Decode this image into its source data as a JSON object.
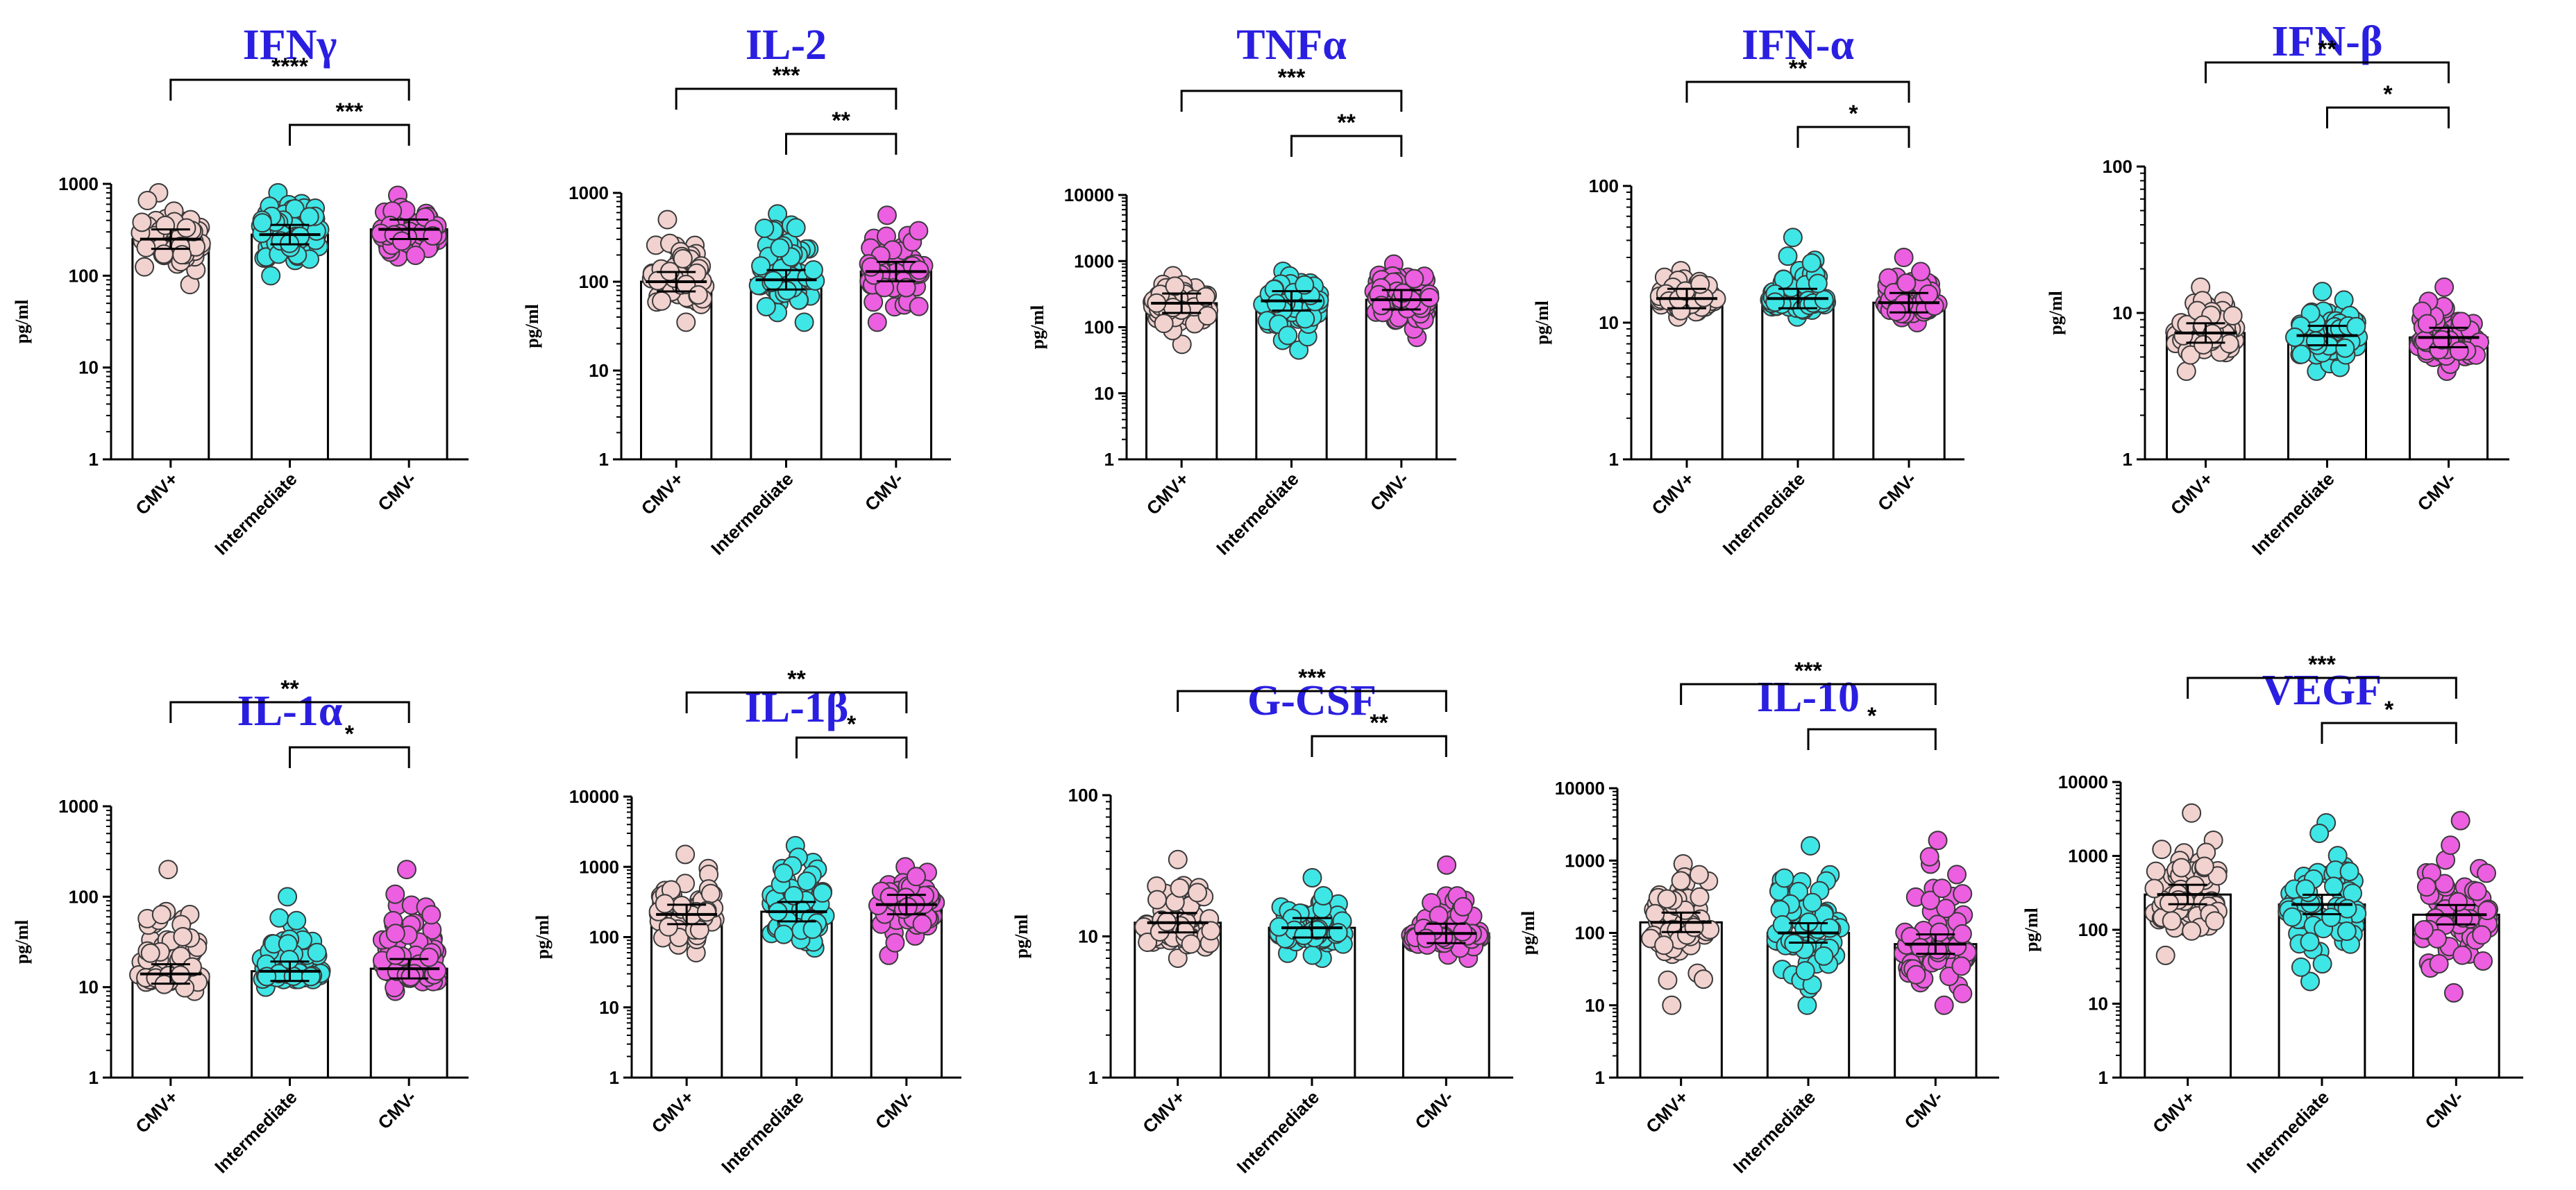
{
  "figure": {
    "group_colors": {
      "CMV+": "#F1D2CF",
      "Intermediate": "#3FE6E6",
      "CMV-": "#EC5FE0"
    },
    "title_color": "#2A1FE0"
  },
  "chart_data": [
    {
      "type": "bar",
      "title": "IFNγ",
      "ylabel": "pg/ml",
      "yscale": "log",
      "ylim": [
        1,
        1000
      ],
      "ticks": [
        "1",
        "10",
        "100",
        "1000"
      ],
      "categories": [
        "CMV+",
        "Intermediate",
        "CMV-"
      ],
      "values": [
        250,
        280,
        320
      ],
      "points": [
        [
          80,
          800
        ],
        [
          100,
          800
        ],
        [
          160,
          750
        ]
      ],
      "significance": [
        {
          "from": 0,
          "to": 2,
          "label": "****"
        },
        {
          "from": 1,
          "to": 2,
          "label": "***"
        }
      ]
    },
    {
      "type": "bar",
      "title": "IL-2",
      "ylabel": "pg/ml",
      "yscale": "log",
      "ylim": [
        1,
        1000
      ],
      "ticks": [
        "1",
        "10",
        "100",
        "1000"
      ],
      "categories": [
        "CMV+",
        "Intermediate",
        "CMV-"
      ],
      "values": [
        100,
        105,
        130
      ],
      "points": [
        [
          35,
          500
        ],
        [
          35,
          580
        ],
        [
          35,
          560
        ]
      ],
      "significance": [
        {
          "from": 0,
          "to": 2,
          "label": "***"
        },
        {
          "from": 1,
          "to": 2,
          "label": "**"
        }
      ]
    },
    {
      "type": "bar",
      "title": "TNFα",
      "ylabel": "pg/ml",
      "yscale": "log",
      "ylim": [
        1,
        10000
      ],
      "ticks": [
        "1",
        "10",
        "100",
        "1000",
        "10000"
      ],
      "categories": [
        "CMV+",
        "Intermediate",
        "CMV-"
      ],
      "values": [
        230,
        250,
        260
      ],
      "points": [
        [
          55,
          600
        ],
        [
          45,
          700
        ],
        [
          70,
          900
        ]
      ],
      "significance": [
        {
          "from": 0,
          "to": 2,
          "label": "***"
        },
        {
          "from": 1,
          "to": 2,
          "label": "**"
        }
      ]
    },
    {
      "type": "bar",
      "title": "IFN-α",
      "ylabel": "pg/ml",
      "yscale": "log",
      "ylim": [
        1,
        100
      ],
      "ticks": [
        "1",
        "10",
        "100"
      ],
      "categories": [
        "CMV+",
        "Intermediate",
        "CMV-"
      ],
      "values": [
        15,
        15,
        14
      ],
      "points": [
        [
          11,
          24
        ],
        [
          11,
          42
        ],
        [
          10,
          30
        ]
      ],
      "significance": [
        {
          "from": 0,
          "to": 2,
          "label": "**"
        },
        {
          "from": 1,
          "to": 2,
          "label": "*"
        }
      ]
    },
    {
      "type": "bar",
      "title": "IFN-β",
      "ylabel": "pg/ml",
      "yscale": "log",
      "ylim": [
        1,
        100
      ],
      "ticks": [
        "1",
        "10",
        "100"
      ],
      "categories": [
        "CMV+",
        "Intermediate",
        "CMV-"
      ],
      "values": [
        7.3,
        7,
        6.8
      ],
      "points": [
        [
          4,
          15
        ],
        [
          4,
          14
        ],
        [
          4,
          15
        ]
      ],
      "significance": [
        {
          "from": 0,
          "to": 2,
          "label": "**"
        },
        {
          "from": 1,
          "to": 2,
          "label": "*"
        }
      ]
    },
    {
      "type": "bar",
      "title": "IL-1α",
      "ylabel": "pg/ml",
      "yscale": "log",
      "ylim": [
        1,
        1000
      ],
      "ticks": [
        "1",
        "10",
        "100",
        "1000"
      ],
      "categories": [
        "CMV+",
        "Intermediate",
        "CMV-"
      ],
      "values": [
        14,
        15,
        16
      ],
      "points": [
        [
          9,
          200
        ],
        [
          10,
          100
        ],
        [
          9,
          200
        ]
      ],
      "significance": [
        {
          "from": 0,
          "to": 2,
          "label": "**"
        },
        {
          "from": 1,
          "to": 2,
          "label": "*"
        }
      ]
    },
    {
      "type": "bar",
      "title": "IL-1β",
      "ylabel": "pg/ml",
      "yscale": "log",
      "ylim": [
        1,
        10000
      ],
      "ticks": [
        "1",
        "10",
        "100",
        "1000",
        "10000"
      ],
      "categories": [
        "CMV+",
        "Intermediate",
        "CMV-"
      ],
      "values": [
        210,
        230,
        290
      ],
      "points": [
        [
          60,
          1500
        ],
        [
          70,
          2000
        ],
        [
          55,
          1000
        ]
      ],
      "significance": [
        {
          "from": 0,
          "to": 2,
          "label": "**"
        },
        {
          "from": 1,
          "to": 2,
          "label": "*"
        }
      ]
    },
    {
      "type": "bar",
      "title": "G-CSF",
      "ylabel": "pg/ml",
      "yscale": "log",
      "ylim": [
        1,
        100
      ],
      "ticks": [
        "1",
        "10",
        "100"
      ],
      "categories": [
        "CMV+",
        "Intermediate",
        "CMV-"
      ],
      "values": [
        12.5,
        11.5,
        10.5
      ],
      "points": [
        [
          7,
          35
        ],
        [
          7,
          26
        ],
        [
          7,
          32
        ]
      ],
      "significance": [
        {
          "from": 0,
          "to": 2,
          "label": "***"
        },
        {
          "from": 1,
          "to": 2,
          "label": "**"
        }
      ]
    },
    {
      "type": "bar",
      "title": "IL-10",
      "ylabel": "pg/ml",
      "yscale": "log",
      "ylim": [
        1,
        10000
      ],
      "ticks": [
        "1",
        "10",
        "100",
        "1000",
        "10000"
      ],
      "categories": [
        "CMV+",
        "Intermediate",
        "CMV-"
      ],
      "values": [
        140,
        100,
        70
      ],
      "points": [
        [
          10,
          900
        ],
        [
          10,
          1600
        ],
        [
          10,
          1900
        ]
      ],
      "significance": [
        {
          "from": 0,
          "to": 2,
          "label": "***"
        },
        {
          "from": 1,
          "to": 2,
          "label": "*"
        }
      ]
    },
    {
      "type": "bar",
      "title": "VEGF",
      "ylabel": "pg/ml",
      "yscale": "log",
      "ylim": [
        1,
        10000
      ],
      "ticks": [
        "1",
        "10",
        "100",
        "1000",
        "10000"
      ],
      "categories": [
        "CMV+",
        "Intermediate",
        "CMV-"
      ],
      "values": [
        300,
        220,
        160
      ],
      "points": [
        [
          45,
          3800
        ],
        [
          20,
          2800
        ],
        [
          14,
          3000
        ]
      ],
      "significance": [
        {
          "from": 0,
          "to": 2,
          "label": "***"
        },
        {
          "from": 1,
          "to": 2,
          "label": "*"
        }
      ]
    }
  ]
}
